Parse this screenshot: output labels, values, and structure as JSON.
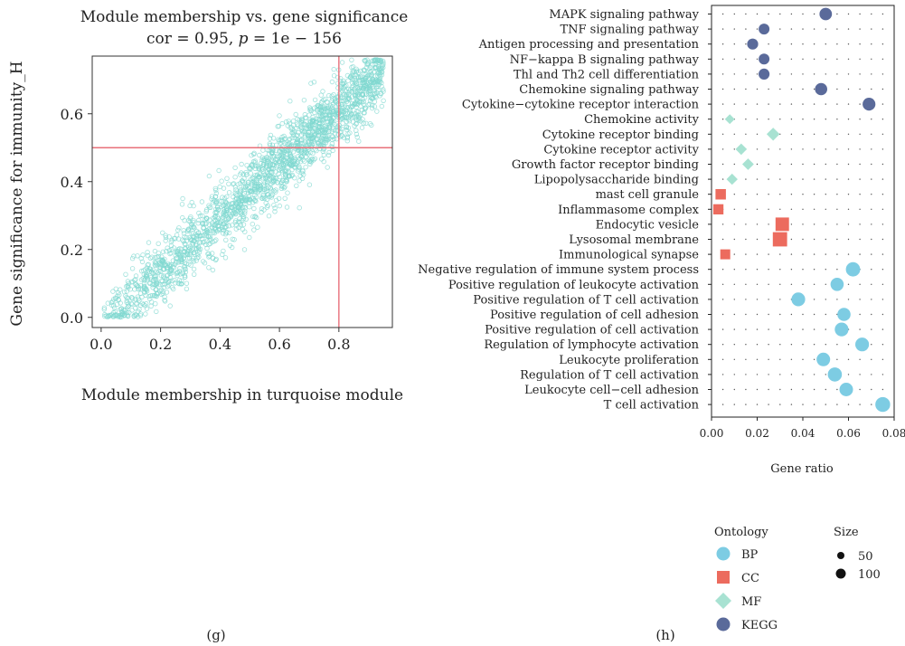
{
  "panel_labels": {
    "g": "(g)",
    "h": "(h)"
  },
  "colors": {
    "scatter_point": "#80d8d0",
    "crosshair": "#e8707a",
    "BP": "#7dcce3",
    "CC": "#ec6b5e",
    "MF": "#a8e2d2",
    "KEGG": "#5a6a9a",
    "size_legend": "#111111",
    "dot_grid": "#555555"
  },
  "chart_data": [
    {
      "id": "g",
      "type": "scatter",
      "title": "Module membership vs. gene significance",
      "subtitle": {
        "prefix": "cor = 0.95, ",
        "p_symbol": "p",
        "suffix": " = 1e − 156"
      },
      "xlabel": "Module membership in turquoise module",
      "ylabel": "Gene significance for immunity_H",
      "xlim": [
        -0.03,
        0.98
      ],
      "ylim": [
        -0.03,
        0.77
      ],
      "xticks": [
        0.0,
        0.2,
        0.4,
        0.6,
        0.8
      ],
      "xtick_labels": [
        "0.0",
        "0.2",
        "0.4",
        "0.6",
        "0.8"
      ],
      "yticks": [
        0.0,
        0.2,
        0.4,
        0.6
      ],
      "ytick_labels": [
        "0.0",
        "0.2",
        "0.4",
        "0.6"
      ],
      "reference_lines": {
        "x": 0.8,
        "y": 0.5
      },
      "grid": false,
      "points_summary": {
        "count_approx": 2000,
        "x_range": [
          0.01,
          0.95
        ],
        "y_range": [
          0.0,
          0.76
        ],
        "trend": "y ≈ 0.80·x − 0.03, linear, spread ≈ ±0.05"
      }
    },
    {
      "id": "h",
      "type": "scatter",
      "subtype": "dot-plot",
      "xlabel": "Gene ratio",
      "ylabel": "",
      "xlim": [
        0.0,
        0.08
      ],
      "xticks": [
        0.0,
        0.02,
        0.04,
        0.06,
        0.08
      ],
      "xtick_labels": [
        "0.00",
        "0.02",
        "0.04",
        "0.06",
        "0.08"
      ],
      "grid": "dotted",
      "legend": {
        "placement": "bottom",
        "ontology_title": "Ontology",
        "ontology_items": [
          {
            "label": "BP",
            "shape": "circle"
          },
          {
            "label": "CC",
            "shape": "square"
          },
          {
            "label": "MF",
            "shape": "diamond"
          },
          {
            "label": "KEGG",
            "shape": "circle"
          }
        ],
        "size_title": "Size",
        "size_items": [
          {
            "label": "50",
            "value": 50
          },
          {
            "label": "100",
            "value": 100
          }
        ]
      },
      "terms": [
        {
          "label": "MAPK signaling pathway",
          "ontology": "KEGG",
          "gene_ratio": 0.05,
          "size": 70
        },
        {
          "label": "TNF signaling pathway",
          "ontology": "KEGG",
          "gene_ratio": 0.023,
          "size": 45
        },
        {
          "label": "Antigen processing and presentation",
          "ontology": "KEGG",
          "gene_ratio": 0.018,
          "size": 48
        },
        {
          "label": "NF−kappa B signaling pathway",
          "ontology": "KEGG",
          "gene_ratio": 0.023,
          "size": 45
        },
        {
          "label": "Thl and Th2 cell differentiation",
          "ontology": "KEGG",
          "gene_ratio": 0.023,
          "size": 48
        },
        {
          "label": "Chemokine signaling pathway",
          "ontology": "KEGG",
          "gene_ratio": 0.048,
          "size": 65
        },
        {
          "label": "Cytokine−cytokine receptor interaction",
          "ontology": "KEGG",
          "gene_ratio": 0.069,
          "size": 75
        },
        {
          "label": "Chemokine activity",
          "ontology": "MF",
          "gene_ratio": 0.008,
          "size": 25
        },
        {
          "label": "Cytokine receptor binding",
          "ontology": "MF",
          "gene_ratio": 0.027,
          "size": 60
        },
        {
          "label": "Cytokine receptor activity",
          "ontology": "MF",
          "gene_ratio": 0.013,
          "size": 40
        },
        {
          "label": "Growth factor receptor binding",
          "ontology": "MF",
          "gene_ratio": 0.016,
          "size": 42
        },
        {
          "label": "Lipopolysaccharide binding",
          "ontology": "MF",
          "gene_ratio": 0.009,
          "size": 38
        },
        {
          "label": "mast cell granule",
          "ontology": "CC",
          "gene_ratio": 0.004,
          "size": 40
        },
        {
          "label": "Inflammasome complex",
          "ontology": "CC",
          "gene_ratio": 0.003,
          "size": 38
        },
        {
          "label": "Endocytic vesicle",
          "ontology": "CC",
          "gene_ratio": 0.031,
          "size": 85
        },
        {
          "label": "Lysosomal membrane",
          "ontology": "CC",
          "gene_ratio": 0.03,
          "size": 100
        },
        {
          "label": "Immunological synapse",
          "ontology": "CC",
          "gene_ratio": 0.006,
          "size": 35
        },
        {
          "label": "Negative regulation of immune system process",
          "ontology": "BP",
          "gene_ratio": 0.062,
          "size": 100
        },
        {
          "label": "Positive regulation of leukocyte activation",
          "ontology": "BP",
          "gene_ratio": 0.055,
          "size": 80
        },
        {
          "label": "Positive regulation of T cell activation",
          "ontology": "BP",
          "gene_ratio": 0.038,
          "size": 90
        },
        {
          "label": "Positive regulation of cell adhesion",
          "ontology": "BP",
          "gene_ratio": 0.058,
          "size": 80
        },
        {
          "label": "Positive regulation of cell activation",
          "ontology": "BP",
          "gene_ratio": 0.057,
          "size": 90
        },
        {
          "label": "Regulation of lymphocyte activation",
          "ontology": "BP",
          "gene_ratio": 0.066,
          "size": 90
        },
        {
          "label": "Leukocyte proliferation",
          "ontology": "BP",
          "gene_ratio": 0.049,
          "size": 85
        },
        {
          "label": "Regulation of T cell activation",
          "ontology": "BP",
          "gene_ratio": 0.054,
          "size": 95
        },
        {
          "label": "Leukocyte cell−cell adhesion",
          "ontology": "BP",
          "gene_ratio": 0.059,
          "size": 85
        },
        {
          "label": "T cell activation",
          "ontology": "BP",
          "gene_ratio": 0.075,
          "size": 110
        }
      ]
    }
  ]
}
